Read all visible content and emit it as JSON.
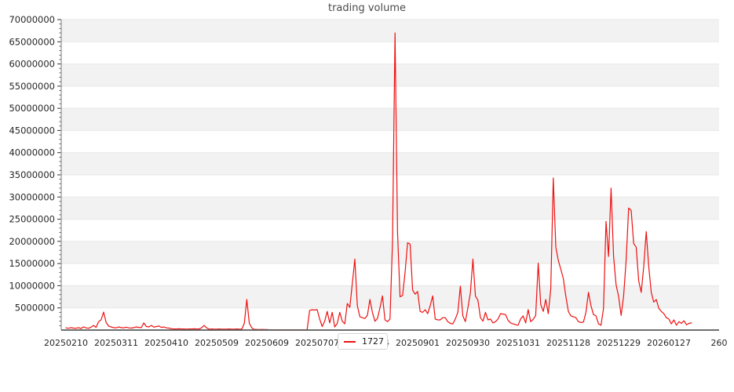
{
  "chart_data": {
    "type": "line",
    "title": "trading volume",
    "legend_position": "bottom-center",
    "grid": "horizontal-alternating-bands",
    "ylim": [
      0,
      70000000
    ],
    "y_ticks": [
      5000000,
      10000000,
      15000000,
      20000000,
      25000000,
      30000000,
      35000000,
      40000000,
      45000000,
      50000000,
      55000000,
      60000000,
      65000000,
      70000000
    ],
    "y_minor_tick_step": 1000000,
    "x_tick_labels": [
      "20250210",
      "20250311",
      "20250410",
      "20250509",
      "20250609",
      "20250707",
      "20250804",
      "20250901",
      "20250930",
      "20251031",
      "20251128",
      "20251229",
      "20260127",
      "260"
    ],
    "x_points_per_tick": 20,
    "series": [
      {
        "name": "1727",
        "color": "#ee1111",
        "values": [
          500000,
          400000,
          550000,
          450000,
          400000,
          550000,
          350000,
          700000,
          500000,
          400000,
          650000,
          1050000,
          600000,
          1900000,
          2300000,
          4050000,
          1700000,
          900000,
          700000,
          550000,
          500000,
          700000,
          550000,
          500000,
          650000,
          500000,
          450000,
          550000,
          700000,
          600000,
          550000,
          1600000,
          800000,
          700000,
          1050000,
          650000,
          800000,
          900000,
          600000,
          700000,
          500000,
          450000,
          300000,
          250000,
          250000,
          300000,
          250000,
          250000,
          200000,
          250000,
          250000,
          300000,
          250000,
          250000,
          500000,
          1050000,
          500000,
          200000,
          250000,
          200000,
          200000,
          250000,
          200000,
          200000,
          200000,
          250000,
          200000,
          200000,
          250000,
          200000,
          200000,
          1500000,
          6900000,
          1500000,
          500000,
          150000,
          150000,
          120000,
          150000,
          120000,
          120000,
          50000,
          50000,
          50000,
          50000,
          50000,
          50000,
          50000,
          50000,
          50000,
          50000,
          50000,
          50000,
          50000,
          50000,
          50000,
          50000,
          4400000,
          4600000,
          4500000,
          4600000,
          2500000,
          800000,
          2000000,
          4200000,
          1600000,
          4000000,
          700000,
          1500000,
          4000000,
          2000000,
          1400000,
          6000000,
          5100000,
          10500000,
          16000000,
          5500000,
          3000000,
          2800000,
          2600000,
          3300000,
          6900000,
          4000000,
          2000000,
          2600000,
          5000000,
          7700000,
          2300000,
          1900000,
          2500000,
          20000000,
          67000000,
          22000000,
          7500000,
          7800000,
          13000000,
          19700000,
          19400000,
          9000000,
          8100000,
          8700000,
          4200000,
          4000000,
          4600000,
          3700000,
          5500000,
          7700000,
          2500000,
          2300000,
          2300000,
          2800000,
          2800000,
          1900000,
          1500000,
          1400000,
          2500000,
          4000000,
          9900000,
          3200000,
          1900000,
          5000000,
          8400000,
          16000000,
          7700000,
          6700000,
          2800000,
          2000000,
          4000000,
          2300000,
          2500000,
          1600000,
          1900000,
          2500000,
          3700000,
          3600000,
          3500000,
          2200000,
          1600000,
          1400000,
          1200000,
          1100000,
          2500000,
          3200000,
          1600000,
          4600000,
          1900000,
          2400000,
          3300000,
          15100000,
          5800000,
          4200000,
          6900000,
          3700000,
          9300000,
          34300000,
          18700000,
          15700000,
          13700000,
          11600000,
          7600000,
          4200000,
          3200000,
          3000000,
          2800000,
          1900000,
          1700000,
          1800000,
          4000000,
          8500000,
          5500000,
          3500000,
          3200000,
          1400000,
          1100000,
          4900000,
          24500000,
          16600000,
          32000000,
          16600000,
          10200000,
          7600000,
          3300000,
          7700000,
          15700000,
          27500000,
          27000000,
          19500000,
          18700000,
          11100000,
          8500000,
          14300000,
          22200000,
          14300000,
          8500000,
          6300000,
          6900000,
          4900000,
          4200000,
          3700000,
          2800000,
          2500000,
          1400000,
          2300000,
          1100000,
          1900000,
          1500000,
          2100000,
          1200000,
          1500000,
          1600000
        ]
      }
    ]
  },
  "style": {
    "band_gray": "#f2f2f2",
    "band_white": "#ffffff",
    "grid_line": "#e7e7e7",
    "left_spine": "#909090",
    "bottom_spine": "#5a5a5a",
    "tick_text": "#262626",
    "title_text": "#4a4a4a",
    "legend_border": "#d5d5d5"
  }
}
